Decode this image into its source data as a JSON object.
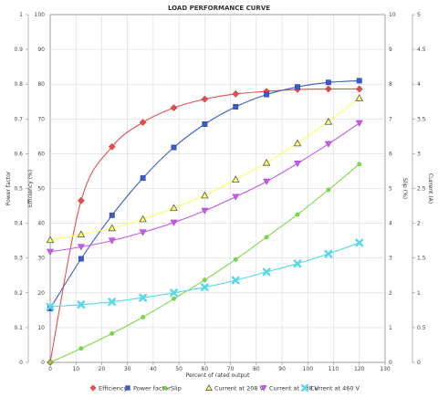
{
  "chart_data": {
    "type": "line",
    "title": "LOAD PERFORMANCE CURVE",
    "xlabel": "Percent of rated output",
    "xlim": [
      0,
      130
    ],
    "x_ticks": [
      "0",
      "10",
      "20",
      "30",
      "40",
      "50",
      "60",
      "70",
      "80",
      "90",
      "100",
      "110",
      "120",
      "130"
    ],
    "y_axes": [
      {
        "id": "pf",
        "label": "Power factor",
        "side": "left",
        "ylim": [
          0,
          1
        ],
        "ticks": [
          "0",
          "0.1",
          "0.2",
          "0.3",
          "0.4",
          "0.5",
          "0.6",
          "0.7",
          "0.8",
          "0.9",
          "1"
        ]
      },
      {
        "id": "eff",
        "label": "Efficiency (%)",
        "side": "left",
        "ylim": [
          0,
          100
        ],
        "ticks": [
          "0",
          "10",
          "20",
          "30",
          "40",
          "50",
          "60",
          "70",
          "80",
          "90",
          "100"
        ]
      },
      {
        "id": "slip",
        "label": "Slip (%)",
        "side": "right",
        "ylim": [
          0,
          10
        ],
        "ticks": [
          "0",
          "1",
          "2",
          "3",
          "4",
          "5",
          "6",
          "7",
          "8",
          "9",
          "10"
        ]
      },
      {
        "id": "cur",
        "label": "Current (A)",
        "side": "right",
        "ylim": [
          0,
          5
        ],
        "ticks": [
          "0",
          "0.5",
          "1",
          "1.5",
          "2",
          "2.5",
          "3",
          "3.5",
          "4",
          "4.5",
          "5"
        ]
      }
    ],
    "x": [
      0,
      12,
      24,
      36,
      48,
      60,
      72,
      84,
      96,
      108,
      120
    ],
    "grid": true,
    "legend_position": "bottom",
    "series": [
      {
        "name": "Efficiency",
        "axis": "eff",
        "color": "#e84c4c",
        "marker": "diamond",
        "values": [
          0,
          46.5,
          62,
          69,
          73.2,
          75.7,
          77.2,
          77.9,
          78.5,
          78.6,
          78.6
        ]
      },
      {
        "name": "Power factor",
        "axis": "pf",
        "color": "#3b5bc9",
        "marker": "square",
        "values": [
          0.155,
          0.298,
          0.423,
          0.53,
          0.618,
          0.685,
          0.735,
          0.77,
          0.792,
          0.805,
          0.81
        ]
      },
      {
        "name": "Slip",
        "axis": "slip",
        "color": "#7bd94a",
        "marker": "circle",
        "values": [
          0,
          0.4,
          0.83,
          1.3,
          1.83,
          2.37,
          2.96,
          3.6,
          4.25,
          4.96,
          5.7
        ]
      },
      {
        "name": "Current at 208 V",
        "axis": "cur",
        "color": "#ffff66",
        "marker": "triangle-up",
        "values": [
          1.76,
          1.84,
          1.93,
          2.06,
          2.22,
          2.4,
          2.63,
          2.87,
          3.15,
          3.46,
          3.8
        ]
      },
      {
        "name": "Current at 230 V",
        "axis": "cur",
        "color": "#c45ce8",
        "marker": "triangle-down",
        "values": [
          1.59,
          1.66,
          1.75,
          1.87,
          2.01,
          2.18,
          2.38,
          2.6,
          2.86,
          3.14,
          3.44
        ]
      },
      {
        "name": "Current at 460 V",
        "axis": "cur",
        "color": "#55d9e8",
        "marker": "cross",
        "values": [
          0.8,
          0.83,
          0.87,
          0.93,
          1.0,
          1.08,
          1.18,
          1.3,
          1.42,
          1.56,
          1.72
        ]
      }
    ]
  }
}
